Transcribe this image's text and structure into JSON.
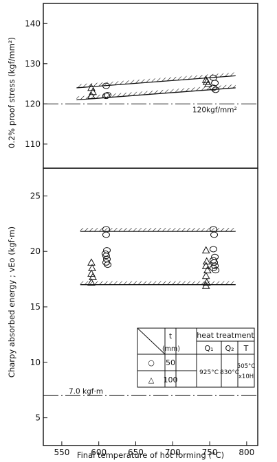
{
  "chart_data": {
    "type": "scatter",
    "x": {
      "label": "Final temperature of hot forming (°C)",
      "range": [
        525,
        815
      ],
      "ticks": [
        550,
        600,
        650,
        700,
        750,
        800
      ]
    },
    "panels": [
      {
        "id": "proof",
        "ylabel": "0.2% proof stress (kgf/mm²)",
        "ylim": [
          104,
          145
        ],
        "yticks": [
          110,
          120,
          130,
          140
        ],
        "reference": {
          "value": 120,
          "label": "120kgf/mm²"
        },
        "bands": [
          {
            "x": [
              570,
              785
            ],
            "y": [
              124.0,
              127.0
            ]
          },
          {
            "x": [
              570,
              785
            ],
            "y": [
              121.0,
              124.0
            ]
          }
        ],
        "series": [
          {
            "marker": "circle",
            "points": [
              [
                610,
                124.5
              ],
              [
                610,
                122.0
              ],
              [
                612,
                122.2
              ],
              [
                755,
                126.5
              ],
              [
                757,
                125.2
              ],
              [
                755,
                124.0
              ],
              [
                758,
                123.5
              ]
            ]
          },
          {
            "marker": "triangle",
            "points": [
              [
                590,
                124.0
              ],
              [
                592,
                123.0
              ],
              [
                590,
                122.0
              ],
              [
                745,
                126.0
              ],
              [
                748,
                125.0
              ],
              [
                746,
                125.5
              ]
            ]
          }
        ]
      },
      {
        "id": "charpy",
        "ylabel": "Charpy absorbed energy ; vEo (kgf·m)",
        "ylim": [
          2.5,
          27.5
        ],
        "yticks": [
          5,
          10,
          15,
          20,
          25
        ],
        "reference": {
          "value": 7.0,
          "label": "7.0 kgf·m"
        },
        "bands": [
          {
            "x": [
              575,
              785
            ],
            "y": [
              21.8
            ]
          },
          {
            "x": [
              575,
              785
            ],
            "y": [
              17.0
            ]
          }
        ],
        "series": [
          {
            "marker": "circle",
            "points": [
              [
                610,
                22.0
              ],
              [
                610,
                21.5
              ],
              [
                611,
                20.1
              ],
              [
                609,
                19.8
              ],
              [
                610,
                19.6
              ],
              [
                611,
                19.3
              ],
              [
                610,
                19.0
              ],
              [
                612,
                18.8
              ],
              [
                755,
                22.0
              ],
              [
                756,
                21.5
              ],
              [
                755,
                20.2
              ],
              [
                757,
                19.5
              ],
              [
                755,
                19.2
              ],
              [
                756,
                19.0
              ],
              [
                757,
                18.7
              ],
              [
                755,
                18.5
              ],
              [
                758,
                18.3
              ]
            ]
          },
          {
            "marker": "triangle",
            "points": [
              [
                590,
                19.0
              ],
              [
                591,
                18.5
              ],
              [
                590,
                18.0
              ],
              [
                592,
                17.7
              ],
              [
                590,
                17.2
              ],
              [
                745,
                20.1
              ],
              [
                746,
                19.1
              ],
              [
                745,
                18.7
              ],
              [
                747,
                18.3
              ],
              [
                745,
                17.8
              ],
              [
                746,
                17.2
              ],
              [
                745,
                16.9
              ]
            ]
          }
        ]
      }
    ],
    "legend_table": {
      "placement": "bottom-right of lower panel",
      "header_t": "t",
      "header_unit": "(mm)",
      "header_ht": "heat treatment",
      "header_q1": "Q₁",
      "header_q2": "Q₂",
      "header_T": "T",
      "rows": [
        {
          "marker": "circle",
          "symbol": "○",
          "t": "50"
        },
        {
          "marker": "triangle",
          "symbol": "△",
          "t": "100"
        }
      ],
      "q1": "925°C",
      "q2": "830°C",
      "T1": "505°C",
      "T2": "x10H"
    }
  }
}
